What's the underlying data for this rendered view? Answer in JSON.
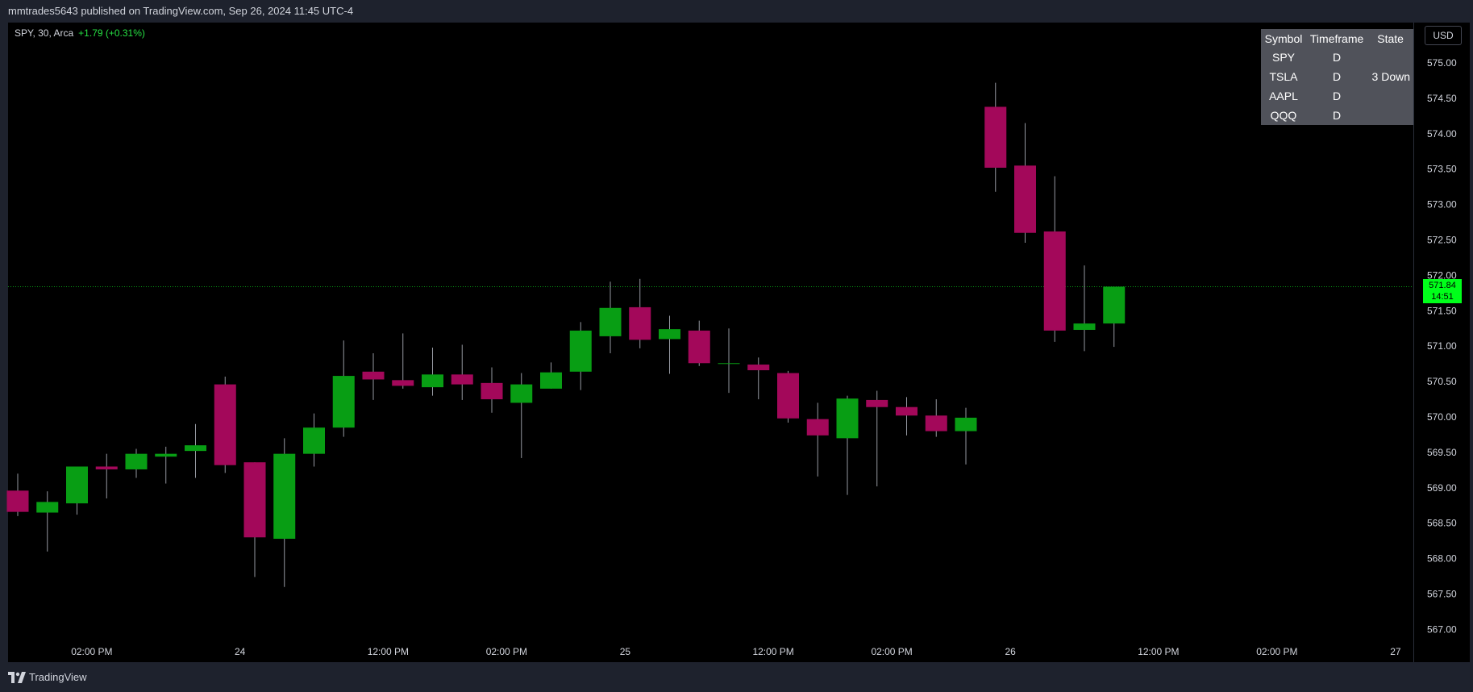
{
  "header": {
    "text": "mmtrades5643 published on TradingView.com, Sep 26, 2024 11:45 UTC-4"
  },
  "legend": {
    "symbol": "SPY, 30, Arca",
    "change": "+1.79 (+0.31%)"
  },
  "currency_button": "USD",
  "footer": {
    "brand": "TradingView"
  },
  "last_price": {
    "price": "571.84",
    "countdown": "14:51"
  },
  "colors": {
    "up": "#089e14",
    "down": "#a3085a",
    "last_price_tag": "#00ff1a",
    "background": "#000000"
  },
  "state_table": {
    "headers": [
      "Symbol",
      "Timeframe",
      "State"
    ],
    "rows": [
      [
        "SPY",
        "D",
        ""
      ],
      [
        "TSLA",
        "D",
        "3 Down"
      ],
      [
        "AAPL",
        "D",
        ""
      ],
      [
        "QQQ",
        "D",
        ""
      ]
    ]
  },
  "chart_data": {
    "type": "candlestick",
    "symbol": "SPY",
    "timeframe": "30",
    "y_ticks": [
      "575.00",
      "574.50",
      "574.00",
      "573.50",
      "573.00",
      "572.50",
      "572.00",
      "571.50",
      "571.00",
      "570.50",
      "570.00",
      "569.50",
      "569.00",
      "568.50",
      "568.00",
      "567.50",
      "567.00"
    ],
    "ylim": [
      566.8,
      575.4
    ],
    "x_ticks": [
      "02:00 PM",
      "24",
      "12:00 PM",
      "02:00 PM",
      "25",
      "12:00 PM",
      "02:00 PM",
      "26",
      "12:00 PM",
      "02:00 PM",
      "27"
    ],
    "x_tick_bar_index": [
      2.5,
      7.5,
      12.5,
      16.5,
      20.5,
      25.5,
      29.5,
      33.5,
      38.5,
      42.5,
      46.5
    ],
    "last_price": 571.84,
    "candles": [
      {
        "o": 568.96,
        "h": 569.2,
        "l": 568.6,
        "c": 568.66
      },
      {
        "o": 568.65,
        "h": 568.95,
        "l": 568.1,
        "c": 568.8
      },
      {
        "o": 568.78,
        "h": 569.3,
        "l": 568.62,
        "c": 569.3
      },
      {
        "o": 569.3,
        "h": 569.48,
        "l": 568.85,
        "c": 569.26
      },
      {
        "o": 569.26,
        "h": 569.55,
        "l": 569.14,
        "c": 569.48
      },
      {
        "o": 569.44,
        "h": 569.58,
        "l": 569.06,
        "c": 569.48
      },
      {
        "o": 569.52,
        "h": 569.9,
        "l": 569.14,
        "c": 569.6
      },
      {
        "o": 570.46,
        "h": 570.57,
        "l": 569.21,
        "c": 569.32
      },
      {
        "o": 569.36,
        "h": 569.36,
        "l": 567.74,
        "c": 568.3
      },
      {
        "o": 568.28,
        "h": 569.7,
        "l": 567.6,
        "c": 569.48
      },
      {
        "o": 569.48,
        "h": 570.05,
        "l": 569.3,
        "c": 569.85
      },
      {
        "o": 569.85,
        "h": 571.08,
        "l": 569.72,
        "c": 570.58
      },
      {
        "o": 570.64,
        "h": 570.9,
        "l": 570.24,
        "c": 570.53
      },
      {
        "o": 570.52,
        "h": 571.18,
        "l": 570.4,
        "c": 570.44
      },
      {
        "o": 570.42,
        "h": 570.98,
        "l": 570.3,
        "c": 570.6
      },
      {
        "o": 570.6,
        "h": 571.02,
        "l": 570.24,
        "c": 570.46
      },
      {
        "o": 570.48,
        "h": 570.7,
        "l": 570.06,
        "c": 570.25
      },
      {
        "o": 570.2,
        "h": 570.62,
        "l": 569.42,
        "c": 570.46
      },
      {
        "o": 570.4,
        "h": 570.77,
        "l": 570.4,
        "c": 570.63
      },
      {
        "o": 570.64,
        "h": 571.34,
        "l": 570.38,
        "c": 571.22
      },
      {
        "o": 571.14,
        "h": 571.91,
        "l": 570.9,
        "c": 571.54
      },
      {
        "o": 571.55,
        "h": 571.95,
        "l": 570.97,
        "c": 571.09
      },
      {
        "o": 571.1,
        "h": 571.43,
        "l": 570.61,
        "c": 571.24
      },
      {
        "o": 571.22,
        "h": 571.36,
        "l": 570.72,
        "c": 570.76
      },
      {
        "o": 570.76,
        "h": 571.25,
        "l": 570.34,
        "c": 570.76
      },
      {
        "o": 570.74,
        "h": 570.84,
        "l": 570.25,
        "c": 570.66
      },
      {
        "o": 570.62,
        "h": 570.65,
        "l": 569.92,
        "c": 569.98
      },
      {
        "o": 569.97,
        "h": 570.2,
        "l": 569.16,
        "c": 569.74
      },
      {
        "o": 569.7,
        "h": 570.3,
        "l": 568.9,
        "c": 570.26
      },
      {
        "o": 570.24,
        "h": 570.37,
        "l": 569.02,
        "c": 570.14
      },
      {
        "o": 570.14,
        "h": 570.28,
        "l": 569.74,
        "c": 570.02
      },
      {
        "o": 570.02,
        "h": 570.25,
        "l": 569.72,
        "c": 569.8
      },
      {
        "o": 569.8,
        "h": 570.13,
        "l": 569.33,
        "c": 569.99
      },
      {
        "o": 574.38,
        "h": 574.72,
        "l": 573.18,
        "c": 573.52
      },
      {
        "o": 573.55,
        "h": 574.15,
        "l": 572.46,
        "c": 572.6
      },
      {
        "o": 572.62,
        "h": 573.4,
        "l": 571.06,
        "c": 571.22
      },
      {
        "o": 571.23,
        "h": 572.14,
        "l": 570.93,
        "c": 571.32
      },
      {
        "o": 571.32,
        "h": 571.84,
        "l": 570.99,
        "c": 571.84
      }
    ]
  }
}
